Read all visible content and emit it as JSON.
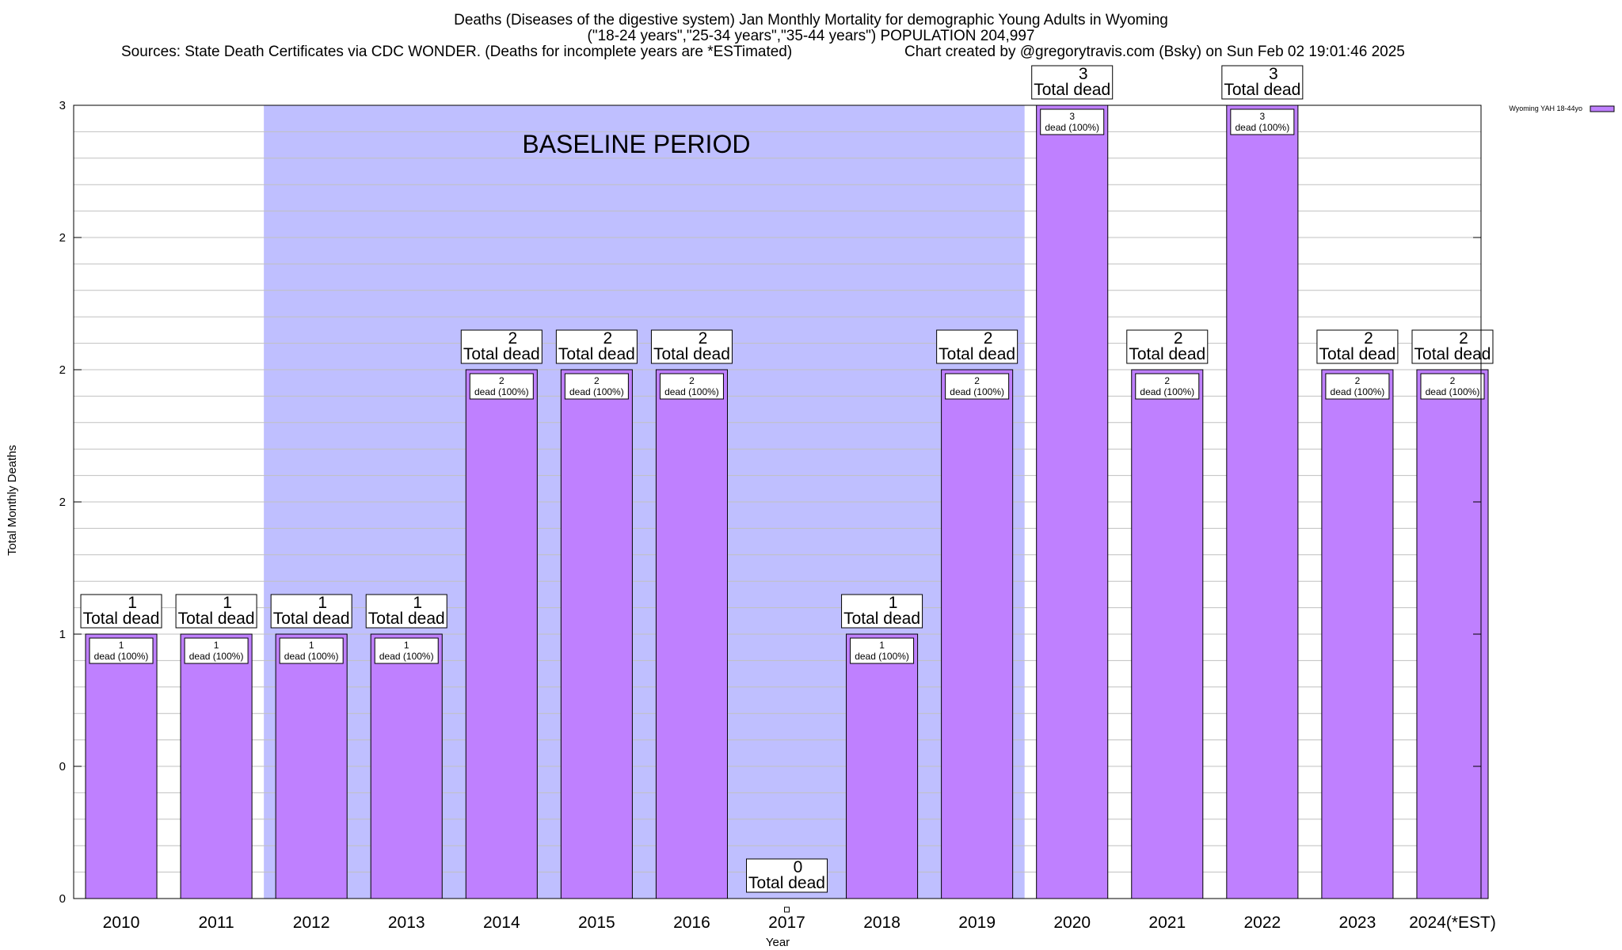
{
  "header": {
    "line1": "Deaths (Diseases of the digestive system) Jan Monthly Mortality for demographic Young Adults in Wyoming",
    "line2": "(\"18-24 years\",\"25-34 years\",\"35-44 years\") POPULATION 204,997",
    "line3_left": "Sources: State Death Certificates via CDC WONDER. (Deaths for incomplete years are *ESTimated)",
    "line3_right": "Chart created by @gregorytravis.com (Bsky) on Sun Feb 02 19:01:46 2025"
  },
  "colors": {
    "bar": "#bf80ff",
    "baseline_band": "#bfbfff",
    "grid": "#c0c0c0"
  },
  "chart_data": {
    "type": "bar",
    "categories": [
      "2010",
      "2011",
      "2012",
      "2013",
      "2014",
      "2015",
      "2016",
      "2017",
      "2018",
      "2019",
      "2020",
      "2021",
      "2022",
      "2023",
      "2024(*EST)"
    ],
    "series": [
      {
        "name": "Wyoming YAH 18-44yo",
        "values": [
          1,
          1,
          1,
          1,
          2,
          2,
          2,
          0,
          1,
          2,
          3,
          2,
          3,
          2,
          2
        ]
      }
    ],
    "bar_labels": {
      "total_label": "Total dead",
      "inner_labels": [
        "dead (100%)",
        "dead (100%)",
        "dead (100%)",
        "dead (100%)",
        "dead (100%)",
        "dead (100%)",
        "dead (100%)",
        "",
        "dead (100%)",
        "dead (100%)",
        "dead (100%)",
        "dead (100%)",
        "dead (100%)",
        "dead (100%)",
        "dead (100%)"
      ]
    },
    "xlabel": "Year",
    "ylabel": "Total Monthly Deaths",
    "ylim": [
      0,
      3
    ],
    "y_tick_labels": [
      "0",
      "0",
      "1",
      "2",
      "2",
      "2",
      "3"
    ],
    "baseline_period": {
      "label": "BASELINE PERIOD",
      "from": "2012",
      "to": "2019"
    },
    "grid": true,
    "legend": {
      "position": "top-right",
      "entries": [
        "Wyoming YAH 18-44yo"
      ]
    }
  }
}
